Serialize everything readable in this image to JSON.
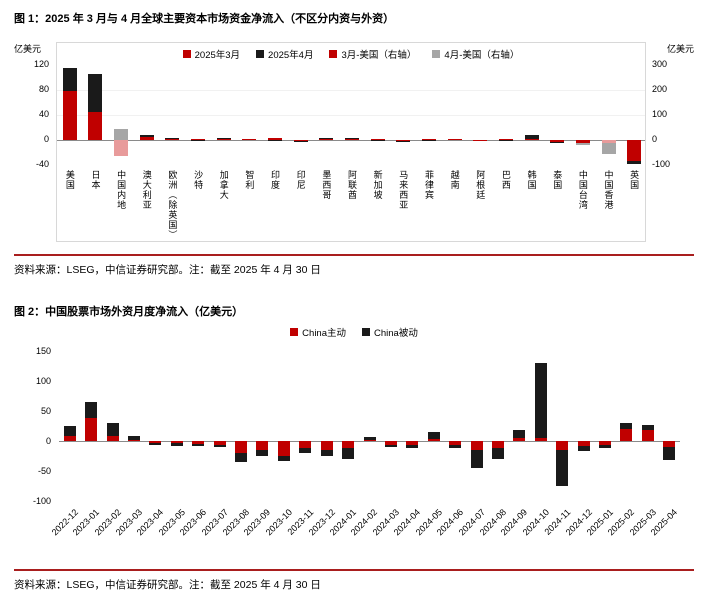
{
  "colors": {
    "rule_red": "#A91E1E",
    "bar_red": "#C00000",
    "bar_black": "#1A1A1A",
    "bar_gray": "#A6A6A6",
    "bar_pink": "#E89B9B"
  },
  "figure1": {
    "title": "图 1：2025 年 3 月与 4 月全球主要资本市场资金净流入（不区分内资与外资）",
    "left_axis_label": "亿美元",
    "right_axis_label": "亿美元",
    "source": "资料来源：LSEG，中信证券研究部。注：截至 2025 年 4 月 30 日"
  },
  "figure2": {
    "title": "图 2：中国股票市场外资月度净流入（亿美元）",
    "source": "资料来源：LSEG，中信证券研究部。注：截至 2025 年 4 月 30 日"
  },
  "chart_data": [
    {
      "type": "bar",
      "title": "图 1：2025 年 3 月与 4 月全球主要资本市场资金净流入（不区分内资与外资）",
      "left_axis": {
        "label": "亿美元",
        "ylim": [
          -40,
          120
        ],
        "ticks": [
          120,
          80,
          40,
          0,
          -40
        ]
      },
      "right_axis": {
        "label": "亿美元",
        "ylim": [
          -100,
          300
        ],
        "ticks": [
          300,
          200,
          100,
          0,
          -100
        ]
      },
      "legend": [
        {
          "label": "2025年3月",
          "color": "#C00000"
        },
        {
          "label": "2025年4月",
          "color": "#1A1A1A"
        },
        {
          "label": "3月-美国（右轴）",
          "color": "#C00000"
        },
        {
          "label": "4月-美国（右轴）",
          "color": "#A6A6A6"
        }
      ],
      "grid": false,
      "legend_position": "top-center",
      "bars": [
        {
          "category": "美国",
          "axis": "right",
          "segments": [
            {
              "series": "2025年3月",
              "value": 195,
              "color": "#C00000"
            },
            {
              "series": "2025年4月",
              "value": 92,
              "color": "#1A1A1A"
            }
          ]
        },
        {
          "category": "日本",
          "axis": "left",
          "segments": [
            {
              "series": "2025年3月",
              "value": 45,
              "color": "#C00000"
            },
            {
              "series": "2025年4月",
              "value": 60,
              "color": "#1A1A1A"
            }
          ]
        },
        {
          "category": "中国内地",
          "axis": "left",
          "segments": [
            {
              "series": "2025年3月",
              "value": -25,
              "color": "#E89B9B"
            },
            {
              "series": "2025年4月",
              "value": 18,
              "color": "#A6A6A6"
            }
          ]
        },
        {
          "category": "澳大利亚",
          "axis": "left",
          "segments": [
            {
              "series": "2025年3月",
              "value": 5,
              "color": "#C00000"
            },
            {
              "series": "2025年4月",
              "value": 3,
              "color": "#1A1A1A"
            }
          ]
        },
        {
          "category": "欧洲（除英国）",
          "axis": "left",
          "segments": [
            {
              "series": "2025年3月",
              "value": 2,
              "color": "#C00000"
            },
            {
              "series": "2025年4月",
              "value": 2,
              "color": "#1A1A1A"
            }
          ]
        },
        {
          "category": "沙特",
          "axis": "left",
          "segments": [
            {
              "series": "2025年3月",
              "value": 2,
              "color": "#C00000"
            },
            {
              "series": "2025年4月",
              "value": -1,
              "color": "#1A1A1A"
            }
          ]
        },
        {
          "category": "加拿大",
          "axis": "left",
          "segments": [
            {
              "series": "2025年3月",
              "value": 1,
              "color": "#C00000"
            },
            {
              "series": "2025年4月",
              "value": 1,
              "color": "#1A1A1A"
            }
          ]
        },
        {
          "category": "智利",
          "axis": "left",
          "segments": [
            {
              "series": "2025年3月",
              "value": 1,
              "color": "#C00000"
            }
          ]
        },
        {
          "category": "印度",
          "axis": "left",
          "segments": [
            {
              "series": "2025年3月",
              "value": 3,
              "color": "#C00000"
            },
            {
              "series": "2025年4月",
              "value": -2,
              "color": "#1A1A1A"
            }
          ]
        },
        {
          "category": "印尼",
          "axis": "left",
          "segments": [
            {
              "series": "2025年3月",
              "value": -2,
              "color": "#C00000"
            },
            {
              "series": "2025年4月",
              "value": -1,
              "color": "#1A1A1A"
            }
          ]
        },
        {
          "category": "墨西哥",
          "axis": "left",
          "segments": [
            {
              "series": "2025年3月",
              "value": 2,
              "color": "#C00000"
            },
            {
              "series": "2025年4月",
              "value": 1,
              "color": "#1A1A1A"
            }
          ]
        },
        {
          "category": "阿联酋",
          "axis": "left",
          "segments": [
            {
              "series": "2025年3月",
              "value": 1,
              "color": "#C00000"
            },
            {
              "series": "2025年4月",
              "value": 1,
              "color": "#1A1A1A"
            }
          ]
        },
        {
          "category": "新加坡",
          "axis": "left",
          "segments": [
            {
              "series": "2025年3月",
              "value": 2,
              "color": "#C00000"
            },
            {
              "series": "2025年4月",
              "value": -1,
              "color": "#1A1A1A"
            }
          ]
        },
        {
          "category": "马来西亚",
          "axis": "left",
          "segments": [
            {
              "series": "2025年3月",
              "value": -1,
              "color": "#C00000"
            },
            {
              "series": "2025年4月",
              "value": -1,
              "color": "#1A1A1A"
            }
          ]
        },
        {
          "category": "菲律宾",
          "axis": "left",
          "segments": [
            {
              "series": "2025年3月",
              "value": 1,
              "color": "#C00000"
            },
            {
              "series": "2025年4月",
              "value": -1,
              "color": "#1A1A1A"
            }
          ]
        },
        {
          "category": "越南",
          "axis": "left",
          "segments": [
            {
              "series": "2025年3月",
              "value": 1,
              "color": "#C00000"
            }
          ]
        },
        {
          "category": "阿根廷",
          "axis": "left",
          "segments": [
            {
              "series": "2025年3月",
              "value": -1,
              "color": "#C00000"
            }
          ]
        },
        {
          "category": "巴西",
          "axis": "left",
          "segments": [
            {
              "series": "2025年3月",
              "value": 2,
              "color": "#C00000"
            },
            {
              "series": "2025年4月",
              "value": -2,
              "color": "#1A1A1A"
            }
          ]
        },
        {
          "category": "韩国",
          "axis": "left",
          "segments": [
            {
              "series": "2025年3月",
              "value": 2,
              "color": "#C00000"
            },
            {
              "series": "2025年4月",
              "value": 6,
              "color": "#1A1A1A"
            }
          ]
        },
        {
          "category": "泰国",
          "axis": "left",
          "segments": [
            {
              "series": "2025年3月",
              "value": -3,
              "color": "#C00000"
            },
            {
              "series": "2025年4月",
              "value": -1,
              "color": "#1A1A1A"
            }
          ]
        },
        {
          "category": "中国台湾",
          "axis": "left",
          "segments": [
            {
              "series": "2025年3月",
              "value": -5,
              "color": "#C00000"
            },
            {
              "series": "2025年4月",
              "value": -3,
              "color": "#A6A6A6"
            }
          ]
        },
        {
          "category": "中国香港",
          "axis": "left",
          "segments": [
            {
              "series": "2025年3月",
              "value": -4,
              "color": "#E89B9B"
            },
            {
              "series": "2025年4月",
              "value": -18,
              "color": "#A6A6A6"
            }
          ]
        },
        {
          "category": "英国",
          "axis": "left",
          "segments": [
            {
              "series": "2025年3月",
              "value": -34,
              "color": "#C00000"
            },
            {
              "series": "2025年4月",
              "value": -5,
              "color": "#1A1A1A"
            }
          ]
        }
      ]
    },
    {
      "type": "bar",
      "title": "图 2：中国股票市场外资月度净流入（亿美元）",
      "ylim": [
        -100,
        150
      ],
      "ticks": [
        150,
        100,
        50,
        0,
        -50,
        -100
      ],
      "grid": false,
      "legend_position": "top-center",
      "legend": [
        {
          "label": "China主动",
          "color": "#C00000"
        },
        {
          "label": "China被动",
          "color": "#1A1A1A"
        }
      ],
      "categories": [
        "2022-12",
        "2023-01",
        "2023-02",
        "2023-03",
        "2023-04",
        "2023-05",
        "2023-06",
        "2023-07",
        "2023-08",
        "2023-09",
        "2023-10",
        "2023-11",
        "2023-12",
        "2024-01",
        "2024-02",
        "2024-03",
        "2024-04",
        "2024-05",
        "2024-06",
        "2024-07",
        "2024-08",
        "2024-09",
        "2024-10",
        "2024-11",
        "2024-12",
        "2025-01",
        "2025-02",
        "2025-03",
        "2025-04"
      ],
      "series": [
        {
          "name": "China主动",
          "color": "#C00000",
          "values": [
            8,
            38,
            8,
            2,
            -3,
            -4,
            -5,
            -6,
            -20,
            -15,
            -25,
            -12,
            -15,
            -12,
            2,
            -6,
            -6,
            3,
            -6,
            -15,
            -12,
            5,
            5,
            -15,
            -8,
            -6,
            20,
            18,
            -10
          ]
        },
        {
          "name": "China被动",
          "color": "#1A1A1A",
          "values": [
            17,
            27,
            22,
            6,
            -3,
            -4,
            -3,
            -4,
            -15,
            -10,
            -8,
            -8,
            -10,
            -18,
            4,
            -4,
            -5,
            12,
            -5,
            -30,
            -18,
            13,
            125,
            -60,
            -8,
            -5,
            10,
            8,
            -22
          ]
        }
      ]
    }
  ]
}
